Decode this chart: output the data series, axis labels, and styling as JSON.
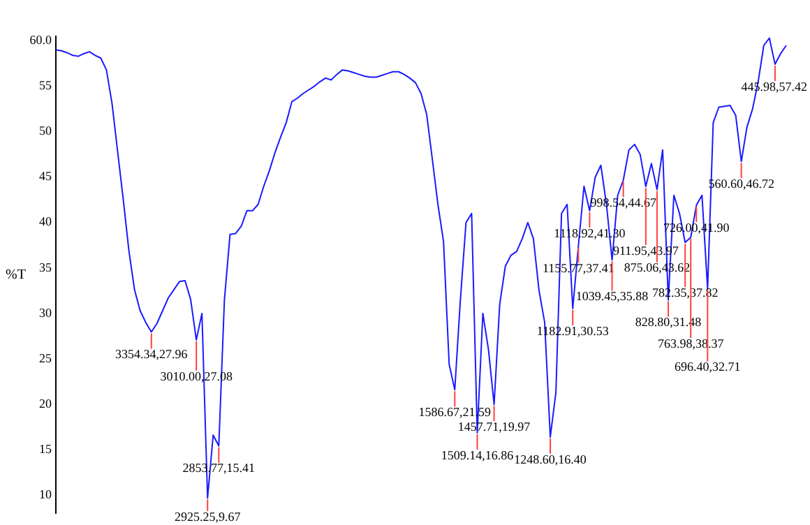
{
  "chart_data": {
    "type": "line",
    "ylabel": "%T",
    "tick_labels": "y",
    "marker": "none",
    "ylim": [
      8,
      60.5
    ],
    "yticks": [
      {
        "value": 60,
        "label": "60.0"
      },
      55,
      50,
      45,
      40,
      35,
      30,
      25,
      20,
      15,
      10
    ],
    "categories": [
      null,
      null,
      null,
      null,
      null,
      null,
      null,
      null,
      null,
      null,
      null,
      null,
      null,
      null,
      null,
      null,
      null,
      null,
      null,
      null,
      null,
      null,
      null,
      null,
      null,
      null,
      null,
      null,
      null,
      null,
      null,
      null,
      null,
      null,
      null,
      null,
      null,
      null,
      null,
      null,
      null,
      null,
      null,
      null,
      null,
      null,
      null,
      null,
      null,
      null,
      null,
      null,
      null,
      null,
      null,
      null,
      null,
      null,
      null,
      null,
      null,
      null,
      null,
      null,
      null,
      null,
      null,
      null,
      null,
      null,
      null,
      null,
      null,
      null,
      null,
      null,
      null,
      null,
      null,
      null,
      null,
      null,
      null,
      null,
      null,
      null,
      null,
      null,
      null,
      null,
      null,
      null,
      null,
      null,
      null,
      null,
      null,
      null,
      null,
      null,
      null,
      null,
      null,
      null,
      null,
      null,
      null,
      null,
      null,
      null,
      null,
      null,
      null,
      null,
      null,
      null,
      null,
      null,
      null,
      null,
      null,
      null,
      null,
      null,
      null,
      null,
      null,
      null,
      null,
      null,
      null
    ],
    "series": [
      {
        "color": "#1a1aff",
        "values": [
          59.0,
          58.9,
          58.7,
          58.4,
          58.3,
          58.6,
          58.8,
          58.4,
          58.1,
          56.8,
          53.1,
          47.8,
          42.5,
          36.9,
          32.6,
          30.3,
          29.0,
          27.96,
          28.9,
          30.3,
          31.7,
          32.6,
          33.5,
          33.6,
          31.5,
          27.08,
          30.0,
          9.67,
          16.6,
          15.41,
          31.5,
          38.7,
          38.8,
          39.6,
          41.3,
          41.3,
          42.0,
          44.0,
          45.7,
          47.7,
          49.4,
          51.0,
          53.3,
          53.7,
          54.2,
          54.6,
          55.0,
          55.5,
          55.9,
          55.7,
          56.3,
          56.8,
          56.7,
          56.5,
          56.3,
          56.1,
          56.0,
          56.0,
          56.2,
          56.4,
          56.6,
          56.6,
          56.3,
          55.9,
          55.4,
          54.2,
          51.9,
          47.0,
          42.0,
          37.9,
          24.4,
          21.59,
          31.5,
          40.0,
          41.0,
          16.86,
          30.0,
          26.0,
          19.97,
          31.0,
          35.2,
          36.4,
          36.8,
          38.2,
          40.0,
          38.2,
          32.5,
          29.0,
          16.4,
          21.3,
          41.0,
          42.0,
          30.53,
          37.41,
          44.0,
          41.3,
          45.0,
          46.3,
          42.0,
          35.88,
          43.0,
          44.67,
          48.0,
          48.6,
          47.5,
          43.97,
          46.5,
          43.62,
          48.0,
          31.48,
          43.0,
          41.0,
          37.82,
          38.37,
          41.9,
          43.0,
          32.71,
          51.0,
          52.7,
          52.8,
          52.9,
          51.8,
          46.72,
          50.5,
          52.5,
          55.5,
          59.5,
          60.3,
          57.42,
          58.6,
          59.5
        ],
        "value_labels": [
          null,
          null,
          null,
          null,
          null,
          null,
          null,
          null,
          null,
          null,
          null,
          null,
          null,
          null,
          null,
          null,
          null,
          "3354.34,27.96",
          null,
          null,
          null,
          null,
          null,
          null,
          null,
          "3010.00,27.08",
          null,
          "2925.25,9.67",
          null,
          "2853.77,15.41",
          null,
          null,
          null,
          null,
          null,
          null,
          null,
          null,
          null,
          null,
          null,
          null,
          null,
          null,
          null,
          null,
          null,
          null,
          null,
          null,
          null,
          null,
          null,
          null,
          null,
          null,
          null,
          null,
          null,
          null,
          null,
          null,
          null,
          null,
          null,
          null,
          null,
          null,
          null,
          null,
          null,
          "1586.67,21.59",
          null,
          null,
          null,
          "1509.14,16.86",
          null,
          null,
          "1457.71,19.97",
          null,
          null,
          null,
          null,
          null,
          null,
          null,
          null,
          null,
          "1248.60,16.40",
          null,
          null,
          null,
          "1182.91,30.53",
          "1155.77,37.41",
          null,
          "1118.92,41.30",
          null,
          null,
          null,
          "1039.45,35.88",
          null,
          "998.54,44.67",
          null,
          null,
          null,
          "911.95,43.97",
          null,
          "875.06,43.62",
          null,
          "828.80,31.48",
          null,
          null,
          "782.35,37.82",
          "763.98,38.37",
          "726.00,41.90",
          null,
          "696.40,32.71",
          null,
          null,
          null,
          null,
          null,
          "560.60,46.72",
          null,
          null,
          null,
          null,
          null,
          "445.98,57.42",
          null,
          null
        ]
      }
    ]
  }
}
